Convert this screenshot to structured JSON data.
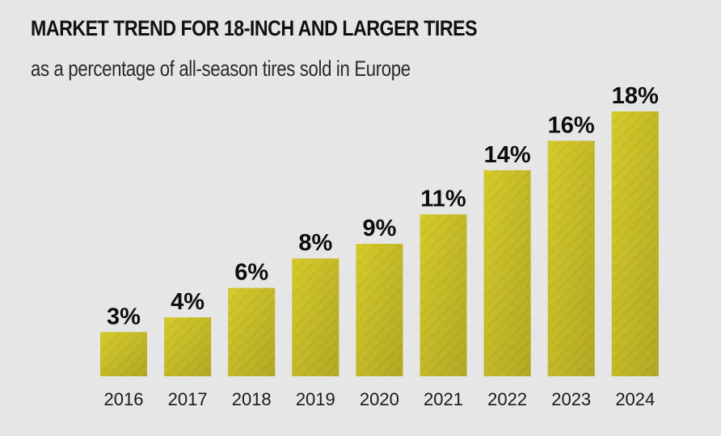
{
  "header": {
    "title": "MARKET TREND FOR 18-INCH AND LARGER TIRES",
    "subtitle": "as a percentage of all-season tires sold in Europe"
  },
  "colors": {
    "background": "#e6e6e6",
    "bar_light": "#d6cc2a",
    "bar_dark": "#a89c22",
    "text": "#111111"
  },
  "chart_data": {
    "type": "bar",
    "title": "MARKET TREND FOR 18-INCH AND LARGER TIRES",
    "subtitle": "as a percentage of all-season tires sold in Europe",
    "xlabel": "",
    "ylabel": "",
    "unit": "%",
    "categories": [
      "2016",
      "2017",
      "2018",
      "2019",
      "2020",
      "2021",
      "2022",
      "2023",
      "2024"
    ],
    "values": [
      3,
      4,
      6,
      8,
      9,
      11,
      14,
      16,
      18
    ],
    "data_labels": [
      "3%",
      "4%",
      "6%",
      "8%",
      "9%",
      "11%",
      "14%",
      "16%",
      "18%"
    ],
    "ylim": [
      0,
      18
    ],
    "grid": false,
    "legend": "none"
  }
}
